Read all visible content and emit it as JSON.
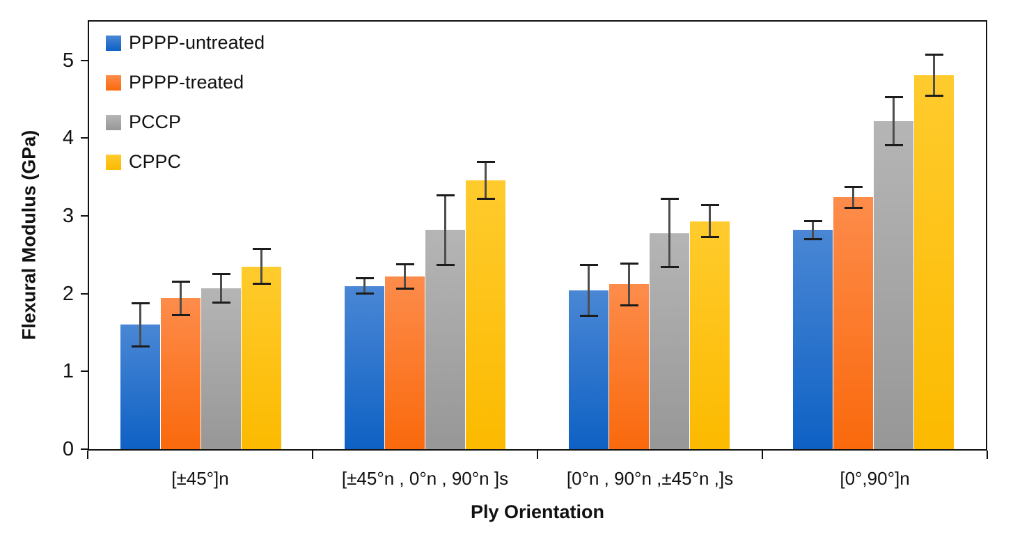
{
  "chart_data": {
    "type": "bar",
    "title": "",
    "xlabel": "Ply Orientation",
    "ylabel": "Flexural Modulus (GPa)",
    "ylim": [
      0,
      5.5
    ],
    "yticks": [
      0,
      1,
      2,
      3,
      4,
      5
    ],
    "grid": false,
    "legend_position": "top-left-inside",
    "error_bars": true,
    "categories": [
      "[±45°]n",
      "[±45°n , 0°n , 90°n ]s",
      "[0°n , 90°n ,±45°n ,]s",
      "[0°,90°]n"
    ],
    "series": [
      {
        "name": "PPPP-untreated",
        "color": "#1F70CB",
        "gradient_top": "#4A87D5",
        "gradient_bottom": "#0E61C4",
        "values": [
          1.6,
          2.1,
          2.04,
          2.82
        ],
        "errors": [
          0.29,
          0.11,
          0.34,
          0.13
        ]
      },
      {
        "name": "PPPP-treated",
        "color": "#FB6C17",
        "gradient_top": "#FD8C4B",
        "gradient_bottom": "#FA690C",
        "values": [
          1.94,
          2.22,
          2.12,
          3.24
        ],
        "errors": [
          0.23,
          0.17,
          0.28,
          0.15
        ]
      },
      {
        "name": "PCCP",
        "color": "#A6A6A6",
        "gradient_top": "#B5B5B5",
        "gradient_bottom": "#979797",
        "values": [
          2.07,
          2.82,
          2.78,
          4.22
        ],
        "errors": [
          0.2,
          0.46,
          0.45,
          0.32
        ]
      },
      {
        "name": "CPPC",
        "color": "#FFC411",
        "gradient_top": "#FFCB2D",
        "gradient_bottom": "#FCBA00",
        "values": [
          2.35,
          3.46,
          2.93,
          4.81
        ],
        "errors": [
          0.24,
          0.25,
          0.22,
          0.28
        ]
      }
    ]
  }
}
